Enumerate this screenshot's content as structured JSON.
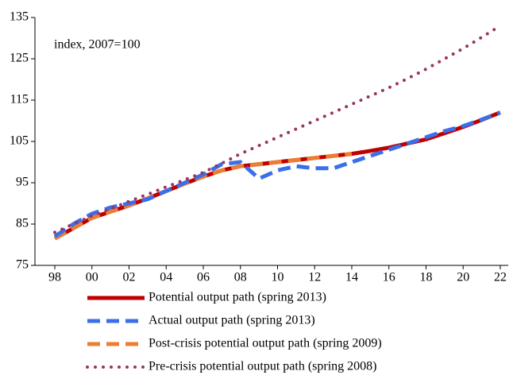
{
  "chart_data": {
    "type": "line",
    "annotation": "index, 2007=100",
    "x": [
      1998,
      1999,
      2000,
      2001,
      2002,
      2003,
      2004,
      2005,
      2006,
      2007,
      2008,
      2009,
      2010,
      2011,
      2012,
      2013,
      2014,
      2015,
      2016,
      2017,
      2018,
      2019,
      2020,
      2021,
      2022
    ],
    "series": [
      {
        "name": "Potential output path (spring 2013)",
        "color": "#c00000",
        "style": "solid",
        "values": [
          81.5,
          84,
          86.5,
          88,
          89.5,
          91.2,
          93,
          94.8,
          96.5,
          98,
          99,
          99.5,
          100,
          100.5,
          101,
          101.5,
          102,
          102.7,
          103.5,
          104.5,
          105.5,
          107,
          108.5,
          110.2,
          112
        ]
      },
      {
        "name": "Actual output path (spring 2013)",
        "color": "#3b6fe8",
        "style": "dash",
        "values": [
          82,
          85,
          87.5,
          89,
          90,
          91,
          93,
          95,
          97,
          99.5,
          100,
          96,
          98,
          99,
          98.5,
          98.5,
          100,
          101.5,
          103,
          104.5,
          106,
          107.5,
          108.7,
          110.3,
          112
        ]
      },
      {
        "name": "Post-crisis potential output path (spring 2009)",
        "color": "#ed7d31",
        "style": "dash",
        "values": [
          81.5,
          84,
          86.5,
          88,
          89.5,
          91.2,
          93,
          94.8,
          96.5,
          98,
          99,
          99.5,
          100,
          100.5,
          101,
          101.5,
          102,
          null,
          null,
          null,
          null,
          null,
          null,
          null,
          null
        ]
      },
      {
        "name": "Pre-crisis potential output path (spring 2008)",
        "color": "#993366",
        "style": "dot",
        "values": [
          83,
          85,
          87,
          88.7,
          90.5,
          92.2,
          94,
          95.7,
          97.5,
          99.7,
          102,
          104,
          106,
          108,
          110,
          112,
          114,
          116,
          118,
          120.2,
          122.5,
          125,
          127.5,
          130.2,
          133
        ]
      }
    ],
    "xlim": [
      1996.93,
      2022.43
    ],
    "xticks": [
      {
        "value": 1998,
        "label": "98"
      },
      {
        "value": 2000,
        "label": "00"
      },
      {
        "value": 2002,
        "label": "02"
      },
      {
        "value": 2004,
        "label": "04"
      },
      {
        "value": 2006,
        "label": "06"
      },
      {
        "value": 2008,
        "label": "08"
      },
      {
        "value": 2010,
        "label": "10"
      },
      {
        "value": 2012,
        "label": "12"
      },
      {
        "value": 2014,
        "label": "14"
      },
      {
        "value": 2016,
        "label": "16"
      },
      {
        "value": 2018,
        "label": "18"
      },
      {
        "value": 2020,
        "label": "20"
      },
      {
        "value": 2022,
        "label": "22"
      }
    ],
    "ylim": [
      75,
      135
    ],
    "yticks": [
      75,
      85,
      95,
      105,
      115,
      125,
      135
    ],
    "grid": false,
    "legend": "bottom"
  }
}
